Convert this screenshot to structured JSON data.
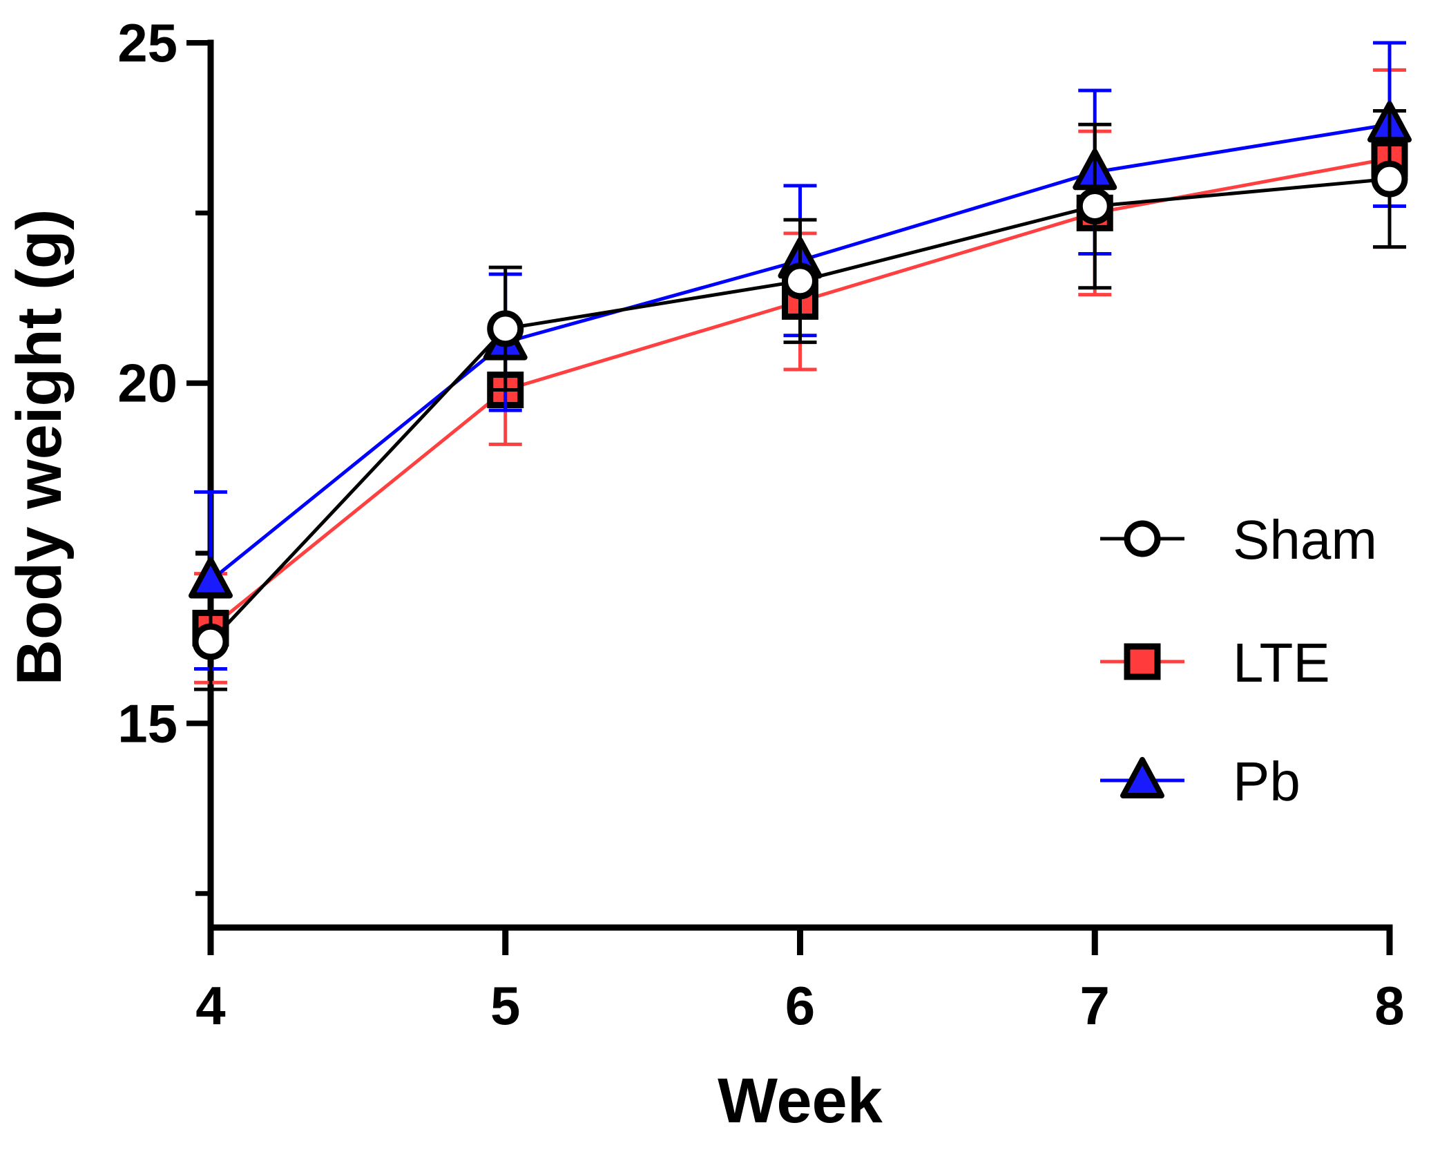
{
  "chart_data": {
    "type": "line",
    "xlabel": "Week",
    "ylabel": "Body weight (g)",
    "x": [
      4,
      5,
      6,
      7,
      8
    ],
    "xlim": [
      4,
      8
    ],
    "ylim": [
      12,
      25
    ],
    "x_ticks": [
      "4",
      "5",
      "6",
      "7",
      "8"
    ],
    "y_ticks_labeled": [
      "15",
      "20",
      "25"
    ],
    "y_ticks_minor": [
      12.5,
      17.5,
      22.5
    ],
    "grid": false,
    "legend_position": "right",
    "error_bars": true,
    "series": [
      {
        "name": "Sham",
        "marker": "circle",
        "line_color": "#000000",
        "fill_color": "#ffffff",
        "err_color": "#000000",
        "values": [
          16.2,
          20.8,
          21.5,
          22.6,
          23.0
        ],
        "errors": [
          0.7,
          0.9,
          0.9,
          1.2,
          1.0
        ]
      },
      {
        "name": "LTE",
        "marker": "square",
        "line_color": "#ff4040",
        "fill_color": "#ff3b3b",
        "err_color": "#ff4040",
        "values": [
          16.4,
          19.9,
          21.2,
          22.5,
          23.3
        ],
        "errors": [
          0.8,
          0.8,
          1.0,
          1.2,
          1.3
        ]
      },
      {
        "name": "Pb",
        "marker": "triangle",
        "line_color": "#0000ff",
        "fill_color": "#1a1aff",
        "err_color": "#0000ff",
        "values": [
          17.1,
          20.6,
          21.8,
          23.1,
          23.8
        ],
        "errors": [
          1.3,
          1.0,
          1.1,
          1.2,
          1.2
        ]
      }
    ]
  }
}
